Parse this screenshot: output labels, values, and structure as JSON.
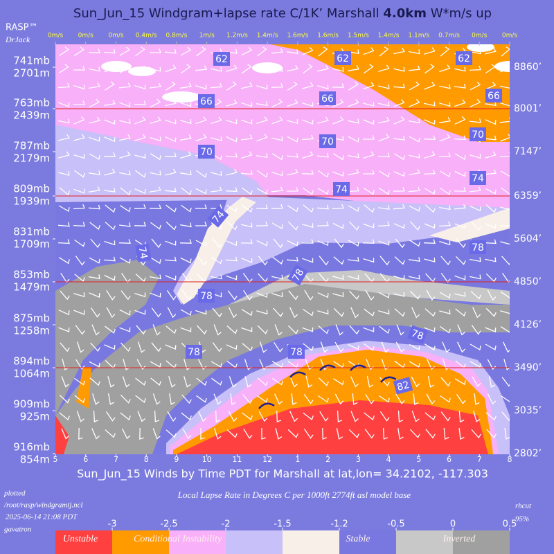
{
  "chart_data": {
    "type": "windgram",
    "title_prefix": "Sun_Jun_15 Windgram+lapse rate C/1K’  Marshall ",
    "title_bold": "4.0km",
    "title_suffix": "  W*m/s up",
    "brand": "RASP™",
    "author": "DrJack",
    "wstar_labels": [
      "0m/s",
      "0m/s",
      "0m/s",
      "0.4m/s",
      "0.8m/s",
      "1m/s",
      "1.2m/s",
      "1.4m/s",
      "1.6m/s",
      "1.6m/s",
      "1.5m/s",
      "1.4m/s",
      "1.1m/s",
      "0.7m/s",
      "0m/s",
      "0m/s"
    ],
    "categories": [
      "5",
      "6",
      "7",
      "8",
      "9",
      "10",
      "11",
      "12",
      "1",
      "2",
      "3",
      "4",
      "5",
      "6",
      "7",
      "8"
    ],
    "pressure_levels": [
      "741mb",
      "763mb",
      "787mb",
      "809mb",
      "831mb",
      "853mb",
      "875mb",
      "894mb",
      "909mb",
      "916mb"
    ],
    "heights_m": [
      "2701m",
      "2439m",
      "2179m",
      "1939m",
      "1709m",
      "1479m",
      "1258m",
      "1064m",
      "925m",
      "854m"
    ],
    "heights_ft": [
      "8860’",
      "8001’",
      "7147’",
      "6359’",
      "5604’",
      "4850’",
      "4126’",
      "3490’",
      "3035’",
      "2802’"
    ],
    "contour_labels": [
      62,
      62,
      62,
      66,
      66,
      66,
      70,
      70,
      70,
      74,
      74,
      74,
      74,
      78,
      78,
      78,
      78,
      78,
      78,
      78,
      82
    ],
    "xlabel": "Sun_Jun_15 Winds by Time PDT for Marshall at lat,lon= 34.2102, -117.303",
    "colorbar": {
      "title": "Local Lapse Rate in Degrees C per 1000ft   2774ft asl model base",
      "ticks": [
        -3,
        -2.5,
        -2,
        -1.5,
        -1.2,
        -0.5,
        0,
        0.5
      ],
      "colors": [
        "#ff4040",
        "#ff9a00",
        "#f8b0f8",
        "#c8c0f8",
        "#f8f0e8",
        "#7878e0",
        "#c8c8c8",
        "#a0a0a0"
      ],
      "labels": [
        "Unstable",
        "Conditional Instability",
        "Stable",
        "Inverted"
      ]
    },
    "footer": {
      "plotted": "plotted",
      "path": "/root/rasp/windgramtj.ncl",
      "timestamp": "2025-06-14 21:08 PDT",
      "host": "gavatron",
      "rhcut": "rhcut",
      "rhcut_value": "95%"
    }
  }
}
